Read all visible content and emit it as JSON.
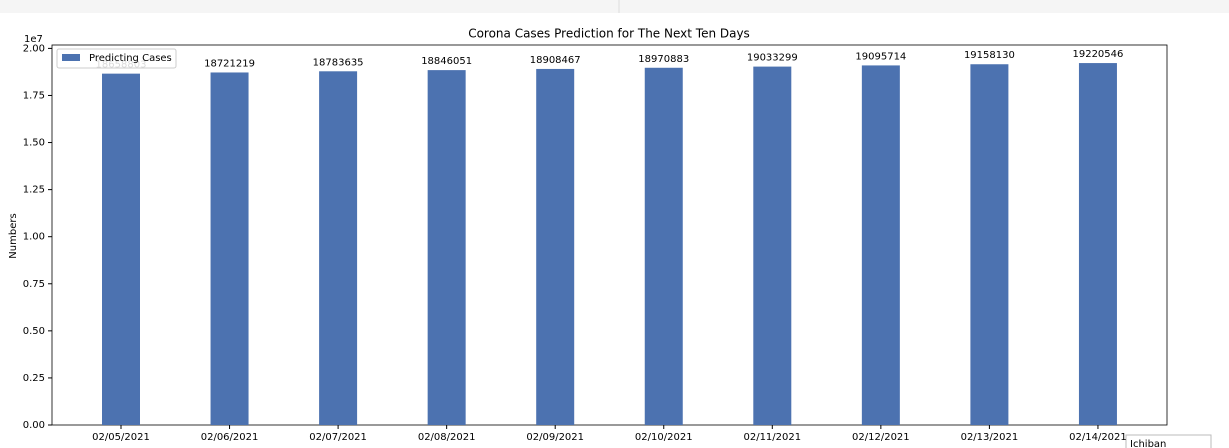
{
  "chart_data": {
    "type": "bar",
    "title": "Corona Cases Prediction for The Next Ten Days",
    "y_label": "Numbers",
    "y_offset_label": "1e7",
    "categories": [
      "02/05/2021",
      "02/06/2021",
      "02/07/2021",
      "02/08/2021",
      "02/09/2021",
      "02/10/2021",
      "02/11/2021",
      "02/12/2021",
      "02/13/2021",
      "02/14/2021"
    ],
    "series": [
      {
        "name": "Predicting Cases",
        "color": "#4c72b0",
        "values": [
          18658803,
          18721219,
          18783635,
          18846051,
          18908467,
          18970883,
          19033299,
          19095714,
          19158130,
          19220546
        ]
      }
    ],
    "ylim": [
      0,
      20180000
    ],
    "yticks": [
      {
        "value": 0,
        "label": "0.00"
      },
      {
        "value": 2500000,
        "label": "0.25"
      },
      {
        "value": 5000000,
        "label": "0.50"
      },
      {
        "value": 7500000,
        "label": "0.75"
      },
      {
        "value": 10000000,
        "label": "1.00"
      },
      {
        "value": 12500000,
        "label": "1.25"
      },
      {
        "value": 15000000,
        "label": "1.50"
      },
      {
        "value": 17500000,
        "label": "1.75"
      },
      {
        "value": 20000000,
        "label": "2.00"
      }
    ],
    "legend": "upper left",
    "grid": false
  },
  "overlay_label": "Ichiban"
}
